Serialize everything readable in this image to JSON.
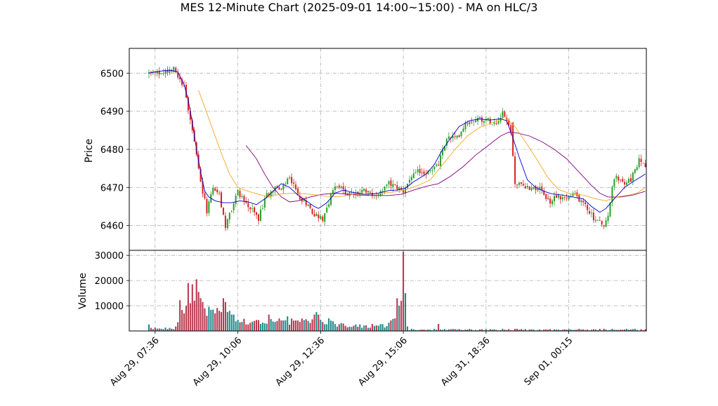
{
  "title": "MES 12-Minute Chart (2025-09-01 14:00~15:00) - MA on HLC/3",
  "colors": {
    "up": "#2ca02c",
    "down": "#d62728",
    "vol_up": "#1f8a8a",
    "vol_down": "#b8384e",
    "ma_fast": "#0000cc",
    "ma_mid": "#f5a623",
    "ma_slow": "#800080",
    "grid": "#b0b0b0"
  },
  "chart_data": {
    "type": "candlestick",
    "price_panel": {
      "ylabel": "Price",
      "ylim": [
        6453.5,
        6506.5
      ],
      "yticks": [
        6460,
        6470,
        6480,
        6490,
        6500
      ],
      "grid": true
    },
    "volume_panel": {
      "ylabel": "Volume",
      "ylim": [
        0,
        32000
      ],
      "yticks": [
        10000,
        20000,
        30000
      ],
      "ytick_labels": [
        "10000",
        "20000",
        "30000"
      ],
      "grid": true
    },
    "x_index_range": [
      -9.5,
      240.5
    ],
    "xticks": [
      {
        "index": 3,
        "label": "Aug 29, 07:36"
      },
      {
        "index": 43,
        "label": "Aug 29, 10:06"
      },
      {
        "index": 83,
        "label": "Aug 29, 12:36"
      },
      {
        "index": 123,
        "label": "Aug 29, 15:06"
      },
      {
        "index": 163,
        "label": "Aug 31, 18:36"
      },
      {
        "index": 203,
        "label": "Sep 01, 00:15"
      }
    ],
    "close_path": [
      [
        0,
        6500
      ],
      [
        6,
        6500
      ],
      [
        12,
        6501
      ],
      [
        14,
        6499
      ],
      [
        17,
        6497
      ],
      [
        19,
        6490
      ],
      [
        21,
        6485
      ],
      [
        23,
        6478
      ],
      [
        25,
        6471
      ],
      [
        28,
        6464
      ],
      [
        31,
        6470
      ],
      [
        34,
        6468
      ],
      [
        37,
        6460
      ],
      [
        40,
        6464
      ],
      [
        43,
        6469
      ],
      [
        48,
        6465
      ],
      [
        53,
        6462
      ],
      [
        57,
        6468
      ],
      [
        61,
        6470
      ],
      [
        64,
        6469
      ],
      [
        68,
        6473
      ],
      [
        72,
        6468
      ],
      [
        76,
        6466
      ],
      [
        80,
        6463
      ],
      [
        84,
        6462
      ],
      [
        87,
        6466
      ],
      [
        90,
        6471
      ],
      [
        94,
        6469
      ],
      [
        98,
        6468
      ],
      [
        104,
        6469
      ],
      [
        110,
        6468
      ],
      [
        116,
        6471
      ],
      [
        120,
        6470
      ],
      [
        123,
        6469
      ],
      [
        126,
        6472
      ],
      [
        130,
        6474
      ],
      [
        135,
        6474
      ],
      [
        140,
        6476
      ],
      [
        144,
        6483
      ],
      [
        149,
        6483
      ],
      [
        153,
        6487
      ],
      [
        157,
        6488
      ],
      [
        162,
        6488
      ],
      [
        168,
        6487
      ],
      [
        171,
        6490
      ],
      [
        175,
        6485
      ],
      [
        177,
        6471
      ],
      [
        184,
        6470
      ],
      [
        188,
        6470
      ],
      [
        191,
        6468
      ],
      [
        194,
        6466
      ],
      [
        197,
        6468
      ],
      [
        201,
        6467
      ],
      [
        206,
        6468
      ],
      [
        210,
        6466
      ],
      [
        215,
        6462
      ],
      [
        220,
        6460
      ],
      [
        222,
        6462
      ],
      [
        224,
        6470
      ],
      [
        226,
        6473
      ],
      [
        229,
        6471
      ],
      [
        233,
        6472
      ],
      [
        237,
        6477
      ],
      [
        240,
        6476
      ]
    ],
    "volume_spikes": [
      [
        0,
        2600
      ],
      [
        7,
        700
      ],
      [
        11,
        900
      ],
      [
        13,
        1800
      ],
      [
        14,
        3500
      ],
      [
        15,
        12200
      ],
      [
        17,
        7000
      ],
      [
        18,
        10000
      ],
      [
        19,
        19000
      ],
      [
        20,
        11000
      ],
      [
        21,
        18500
      ],
      [
        22,
        12000
      ],
      [
        23,
        20500
      ],
      [
        24,
        15500
      ],
      [
        25,
        13000
      ],
      [
        26,
        11500
      ],
      [
        27,
        9000
      ],
      [
        28,
        6000
      ],
      [
        31,
        8500
      ],
      [
        32,
        7000
      ],
      [
        34,
        8000
      ],
      [
        35,
        7500
      ],
      [
        36,
        13000
      ],
      [
        37,
        11500
      ],
      [
        38,
        7500
      ],
      [
        39,
        8000
      ],
      [
        40,
        6500
      ],
      [
        58,
        6500
      ],
      [
        67,
        5800
      ],
      [
        80,
        6500
      ],
      [
        81,
        7500
      ],
      [
        82,
        6500
      ],
      [
        87,
        5000
      ],
      [
        93,
        3200
      ],
      [
        104,
        2200
      ],
      [
        110,
        2200
      ],
      [
        116,
        3300
      ],
      [
        117,
        4200
      ],
      [
        118,
        4800
      ],
      [
        119,
        5000
      ],
      [
        120,
        13000
      ],
      [
        121,
        10000
      ],
      [
        122,
        12000
      ],
      [
        123,
        31500
      ],
      [
        124,
        15000
      ],
      [
        125,
        1800
      ],
      [
        140,
        2800
      ]
    ],
    "ma_fast_path": [
      [
        0,
        6500
      ],
      [
        5,
        6500.5
      ],
      [
        10,
        6500.8
      ],
      [
        14,
        6500.3
      ],
      [
        17,
        6497
      ],
      [
        19,
        6493
      ],
      [
        21,
        6487
      ],
      [
        23,
        6480
      ],
      [
        25,
        6474
      ],
      [
        27,
        6469
      ],
      [
        29,
        6467.5
      ],
      [
        32,
        6466.5
      ],
      [
        36,
        6466
      ],
      [
        40,
        6466
      ],
      [
        44,
        6466.5
      ],
      [
        48,
        6466.2
      ],
      [
        52,
        6465.5
      ],
      [
        56,
        6467
      ],
      [
        60,
        6469
      ],
      [
        64,
        6471
      ],
      [
        68,
        6470
      ],
      [
        72,
        6468
      ],
      [
        76,
        6466.5
      ],
      [
        80,
        6465
      ],
      [
        82,
        6464.5
      ],
      [
        86,
        6466
      ],
      [
        90,
        6468.5
      ],
      [
        94,
        6469.3
      ],
      [
        98,
        6468.8
      ],
      [
        104,
        6468.2
      ],
      [
        110,
        6468.4
      ],
      [
        116,
        6469.2
      ],
      [
        120,
        6469.3
      ],
      [
        124,
        6469.8
      ],
      [
        128,
        6471.5
      ],
      [
        134,
        6473.5
      ],
      [
        138,
        6476
      ],
      [
        142,
        6480
      ],
      [
        146,
        6483
      ],
      [
        150,
        6486
      ],
      [
        155,
        6487.5
      ],
      [
        160,
        6488
      ],
      [
        165,
        6487.7
      ],
      [
        170,
        6488
      ],
      [
        173,
        6487.5
      ],
      [
        176,
        6483
      ],
      [
        179,
        6478
      ],
      [
        183,
        6472
      ],
      [
        187,
        6470
      ],
      [
        191,
        6469
      ],
      [
        195,
        6468.3
      ],
      [
        200,
        6468
      ],
      [
        205,
        6467.5
      ],
      [
        210,
        6467
      ],
      [
        214,
        6465
      ],
      [
        218,
        6463.5
      ],
      [
        221,
        6464.5
      ],
      [
        225,
        6467
      ],
      [
        230,
        6470
      ],
      [
        234,
        6471.5
      ],
      [
        240,
        6473.5
      ]
    ],
    "ma_mid_path": [
      [
        24,
        6495.5
      ],
      [
        27,
        6491
      ],
      [
        31,
        6485
      ],
      [
        35,
        6479
      ],
      [
        39,
        6473.5
      ],
      [
        43,
        6470
      ],
      [
        48,
        6469
      ],
      [
        53,
        6468.2
      ],
      [
        58,
        6467.5
      ],
      [
        64,
        6468.3
      ],
      [
        70,
        6468.5
      ],
      [
        76,
        6468.3
      ],
      [
        82,
        6468
      ],
      [
        88,
        6467.5
      ],
      [
        94,
        6467.7
      ],
      [
        100,
        6468.3
      ],
      [
        106,
        6468.2
      ],
      [
        112,
        6468.5
      ],
      [
        118,
        6468.8
      ],
      [
        124,
        6469.3
      ],
      [
        130,
        6470.5
      ],
      [
        136,
        6472
      ],
      [
        142,
        6476
      ],
      [
        148,
        6480
      ],
      [
        154,
        6483.5
      ],
      [
        160,
        6485.8
      ],
      [
        166,
        6487
      ],
      [
        172,
        6488.5
      ],
      [
        177,
        6486
      ],
      [
        182,
        6482
      ],
      [
        188,
        6477
      ],
      [
        193,
        6472.5
      ],
      [
        198,
        6469.5
      ],
      [
        204,
        6468.3
      ],
      [
        210,
        6468
      ],
      [
        216,
        6467
      ],
      [
        221,
        6466.5
      ],
      [
        226,
        6467.5
      ],
      [
        232,
        6468
      ],
      [
        236,
        6468.5
      ],
      [
        240,
        6470
      ]
    ],
    "ma_slow_path": [
      [
        47,
        6481
      ],
      [
        52,
        6477.5
      ],
      [
        56,
        6473.5
      ],
      [
        60,
        6470
      ],
      [
        64,
        6467.5
      ],
      [
        68,
        6466.2
      ],
      [
        72,
        6466.5
      ],
      [
        78,
        6467.5
      ],
      [
        84,
        6468.2
      ],
      [
        90,
        6468.5
      ],
      [
        96,
        6468.2
      ],
      [
        102,
        6468
      ],
      [
        110,
        6467.9
      ],
      [
        116,
        6467.9
      ],
      [
        122,
        6468.2
      ],
      [
        128,
        6469.3
      ],
      [
        134,
        6470.3
      ],
      [
        140,
        6471
      ],
      [
        146,
        6473
      ],
      [
        152,
        6475.5
      ],
      [
        158,
        6478.5
      ],
      [
        164,
        6481
      ],
      [
        170,
        6483.5
      ],
      [
        174,
        6484.5
      ],
      [
        178,
        6484.3
      ],
      [
        184,
        6483.5
      ],
      [
        190,
        6482
      ],
      [
        196,
        6480
      ],
      [
        202,
        6477.5
      ],
      [
        208,
        6474
      ],
      [
        214,
        6470.5
      ],
      [
        218,
        6468.5
      ],
      [
        222,
        6467.5
      ],
      [
        228,
        6467.5
      ],
      [
        234,
        6468
      ],
      [
        240,
        6469
      ]
    ]
  }
}
